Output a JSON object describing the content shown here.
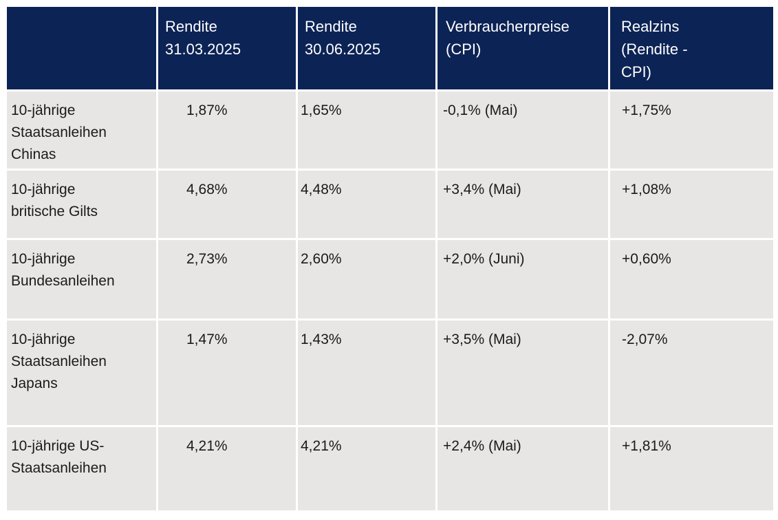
{
  "colors": {
    "header_bg": "#0c2355",
    "header_text": "#ffffff",
    "row_bg": "#e8e6e4",
    "body_text": "#1a1a1a",
    "positive": "#10a34f",
    "negative": "#e01111",
    "page_bg": "#ffffff"
  },
  "table": {
    "columns": [
      {
        "id": "asset",
        "label": ""
      },
      {
        "id": "yield_mar",
        "label": "Rendite\n31.03.2025"
      },
      {
        "id": "yield_jun",
        "label": "Rendite\n30.06.2025"
      },
      {
        "id": "cpi",
        "label": "Verbraucherpreise\n(CPI)"
      },
      {
        "id": "realzins",
        "label": "Realzins\n(Rendite -\nCPI)"
      }
    ],
    "rows": [
      {
        "label": "10-jährige\nStaatsanleihen\nChinas",
        "yield_mar": "1,87%",
        "yield_jun": "1,65%",
        "cpi": "-0,1% (Mai)",
        "realzins": "+1,75%",
        "realzins_tone": "positive"
      },
      {
        "label": "10-jährige\nbritische Gilts",
        "yield_mar": "4,68%",
        "yield_jun": "4,48%",
        "cpi": "+3,4% (Mai)",
        "realzins": "+1,08%",
        "realzins_tone": "positive"
      },
      {
        "label": "10-jährige\nBundesanleihen",
        "yield_mar": "2,73%",
        "yield_jun": "2,60%",
        "cpi": "+2,0% (Juni)",
        "realzins": "+0,60%",
        "realzins_tone": "positive"
      },
      {
        "label": "10-jährige\nStaatsanleihen\nJapans",
        "yield_mar": "1,47%",
        "yield_jun": "1,43%",
        "cpi": "+3,5% (Mai)",
        "realzins": "-2,07%",
        "realzins_tone": "negative"
      },
      {
        "label": "10-jährige US-\nStaatsanleihen",
        "yield_mar": "4,21%",
        "yield_jun": "4,21%",
        "cpi": "+2,4% (Mai)",
        "realzins": "+1,81%",
        "realzins_tone": "positive"
      }
    ]
  },
  "chart_data": {
    "type": "table",
    "title": "",
    "columns": [
      "",
      "Rendite 31.03.2025",
      "Rendite 30.06.2025",
      "Verbraucherpreise (CPI)",
      "Realzins (Rendite - CPI)"
    ],
    "rows": [
      [
        "10-jährige Staatsanleihen Chinas",
        "1,87%",
        "1,65%",
        "-0,1% (Mai)",
        "+1,75%"
      ],
      [
        "10-jährige britische Gilts",
        "4,68%",
        "4,48%",
        "+3,4% (Mai)",
        "+1,08%"
      ],
      [
        "10-jährige Bundesanleihen",
        "2,73%",
        "2,60%",
        "+2,0% (Juni)",
        "+0,60%"
      ],
      [
        "10-jährige Staatsanleihen Japans",
        "1,47%",
        "1,43%",
        "+3,5% (Mai)",
        "-2,07%"
      ],
      [
        "10-jährige US-Staatsanleihen",
        "4,21%",
        "4,21%",
        "+2,4% (Mai)",
        "+1,81%"
      ]
    ],
    "realzins_numeric": [
      1.75,
      1.08,
      0.6,
      -2.07,
      1.81
    ],
    "yield_mar_numeric": [
      1.87,
      4.68,
      2.73,
      1.47,
      4.21
    ],
    "yield_jun_numeric": [
      1.65,
      4.48,
      2.6,
      1.43,
      4.21
    ],
    "cpi_numeric": [
      -0.1,
      3.4,
      2.0,
      3.5,
      2.4
    ]
  }
}
